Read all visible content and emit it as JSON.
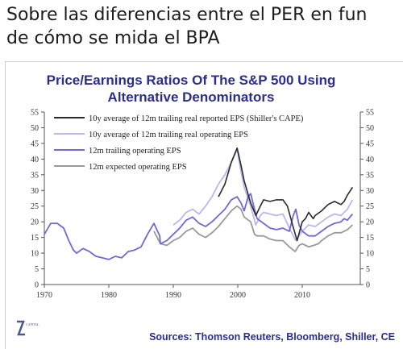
{
  "heading": {
    "line1": "Sobre las diferencias entre el PER en fun",
    "line2": "de cómo se mida el BPA"
  },
  "source": "Sources: Thomson Reuters, Bloomberg, Shiller, CE",
  "logo_text": "CAPITAL",
  "colors": {
    "title": "#2b2e8a",
    "axis": "#555555",
    "series": [
      "#2a2a2a",
      "#b9b8f0",
      "#6e6ad6",
      "#9a9a9a"
    ]
  },
  "chart_data": {
    "type": "line",
    "title": "Price/Earnings Ratios Of The S&P 500 Using",
    "subtitle": "Alternative Denominators",
    "xlim": [
      1970,
      2019
    ],
    "ylim": [
      0,
      55
    ],
    "x_ticks": [
      "1970",
      "1980",
      "1990",
      "2000",
      "2010"
    ],
    "y_ticks": [
      "0",
      "5",
      "10",
      "15",
      "20",
      "25",
      "30",
      "35",
      "40",
      "45",
      "50",
      "55"
    ],
    "y_axis_left_and_right": true,
    "grid": false,
    "legend_position": "top-right",
    "series": [
      {
        "name": "10y average of 12m trailing real reported EPS (Shiller's CAPE)",
        "points": [
          [
            1997,
            28
          ],
          [
            1998,
            32
          ],
          [
            1999,
            39
          ],
          [
            1999.9,
            43.5
          ],
          [
            2000.5,
            38
          ],
          [
            2001,
            33
          ],
          [
            2002,
            26
          ],
          [
            2002.8,
            22
          ],
          [
            2003.5,
            25
          ],
          [
            2004,
            27
          ],
          [
            2005,
            26.5
          ],
          [
            2006,
            27
          ],
          [
            2007,
            27
          ],
          [
            2007.7,
            25
          ],
          [
            2008.5,
            19
          ],
          [
            2009.2,
            14
          ],
          [
            2009.6,
            17
          ],
          [
            2010,
            20
          ],
          [
            2010.5,
            21
          ],
          [
            2011,
            23
          ],
          [
            2011.7,
            21
          ],
          [
            2012,
            22
          ],
          [
            2013,
            23.5
          ],
          [
            2014,
            25.5
          ],
          [
            2015,
            26.5
          ],
          [
            2016,
            25.5
          ],
          [
            2016.5,
            26.5
          ],
          [
            2017,
            28.5
          ],
          [
            2017.8,
            31
          ]
        ]
      },
      {
        "name": "10y average of 12m trailing real operating EPS",
        "points": [
          [
            1990,
            19
          ],
          [
            1991,
            20.5
          ],
          [
            1992,
            23
          ],
          [
            1993,
            24
          ],
          [
            1994,
            22.5
          ],
          [
            1995,
            25
          ],
          [
            1996,
            28
          ],
          [
            1997,
            32
          ],
          [
            1998,
            35
          ],
          [
            1999,
            39
          ],
          [
            1999.9,
            43
          ],
          [
            2000.5,
            36
          ],
          [
            2001,
            31
          ],
          [
            2002,
            25
          ],
          [
            2002.8,
            19
          ],
          [
            2003.5,
            22
          ],
          [
            2004,
            23
          ],
          [
            2005,
            22.5
          ],
          [
            2006,
            22
          ],
          [
            2007,
            22.5
          ],
          [
            2008,
            18
          ],
          [
            2009,
            14
          ],
          [
            2010,
            17
          ],
          [
            2011,
            19
          ],
          [
            2012,
            18.5
          ],
          [
            2013,
            20
          ],
          [
            2014,
            21.5
          ],
          [
            2015,
            22.5
          ],
          [
            2016,
            22
          ],
          [
            2017,
            24
          ],
          [
            2017.8,
            27
          ]
        ]
      },
      {
        "name": "12m trailing operating EPS",
        "points": [
          [
            1970,
            16
          ],
          [
            1971,
            19.5
          ],
          [
            1972,
            19.5
          ],
          [
            1973,
            18
          ],
          [
            1973.8,
            14
          ],
          [
            1974.5,
            11
          ],
          [
            1975,
            10
          ],
          [
            1976,
            11.5
          ],
          [
            1977,
            10.5
          ],
          [
            1978,
            9
          ],
          [
            1979,
            8.5
          ],
          [
            1980,
            8
          ],
          [
            1981,
            9
          ],
          [
            1982,
            8.5
          ],
          [
            1983,
            10.5
          ],
          [
            1984,
            11
          ],
          [
            1985,
            12
          ],
          [
            1986,
            16
          ],
          [
            1987,
            19.5
          ],
          [
            1987.9,
            15.5
          ],
          [
            1988,
            13
          ],
          [
            1989,
            14
          ],
          [
            1990,
            16
          ],
          [
            1991,
            18
          ],
          [
            1992,
            20.5
          ],
          [
            1993,
            21.5
          ],
          [
            1994,
            19.5
          ],
          [
            1995,
            18.5
          ],
          [
            1996,
            20
          ],
          [
            1997,
            22
          ],
          [
            1998,
            24
          ],
          [
            1999,
            27
          ],
          [
            1999.9,
            28
          ],
          [
            2000.5,
            26
          ],
          [
            2001,
            23.5
          ],
          [
            2001.6,
            28
          ],
          [
            2002,
            29
          ],
          [
            2002.6,
            24
          ],
          [
            2003,
            21
          ],
          [
            2004,
            19.5
          ],
          [
            2005,
            18
          ],
          [
            2006,
            17.5
          ],
          [
            2007,
            18
          ],
          [
            2008,
            17
          ],
          [
            2008.6,
            22
          ],
          [
            2009,
            24
          ],
          [
            2009.5,
            19
          ],
          [
            2010,
            17
          ],
          [
            2011,
            15.5
          ],
          [
            2012,
            15.5
          ],
          [
            2013,
            17
          ],
          [
            2014,
            18.5
          ],
          [
            2015,
            19.5
          ],
          [
            2016,
            20
          ],
          [
            2016.5,
            21
          ],
          [
            2017,
            20.5
          ],
          [
            2017.8,
            22.5
          ]
        ]
      },
      {
        "name": "12m expected operating EPS",
        "points": [
          [
            1987,
            17
          ],
          [
            1988,
            13
          ],
          [
            1989,
            12.5
          ],
          [
            1990,
            14
          ],
          [
            1991,
            15
          ],
          [
            1992,
            17
          ],
          [
            1993,
            18
          ],
          [
            1994,
            16
          ],
          [
            1995,
            15
          ],
          [
            1996,
            16.5
          ],
          [
            1997,
            18.5
          ],
          [
            1998,
            21
          ],
          [
            1999,
            23.5
          ],
          [
            1999.9,
            25
          ],
          [
            2000.5,
            24
          ],
          [
            2001,
            21.5
          ],
          [
            2002,
            20
          ],
          [
            2002.6,
            16
          ],
          [
            2003,
            15.5
          ],
          [
            2004,
            15.5
          ],
          [
            2005,
            14.5
          ],
          [
            2006,
            14
          ],
          [
            2007,
            14
          ],
          [
            2008,
            12
          ],
          [
            2008.9,
            10.5
          ],
          [
            2009.5,
            12.5
          ],
          [
            2010,
            13
          ],
          [
            2011,
            12
          ],
          [
            2011.8,
            12.5
          ],
          [
            2012.5,
            13
          ],
          [
            2013,
            14
          ],
          [
            2014,
            15.5
          ],
          [
            2015,
            16.5
          ],
          [
            2016,
            16.5
          ],
          [
            2017,
            17.5
          ],
          [
            2017.8,
            19
          ]
        ]
      }
    ]
  }
}
